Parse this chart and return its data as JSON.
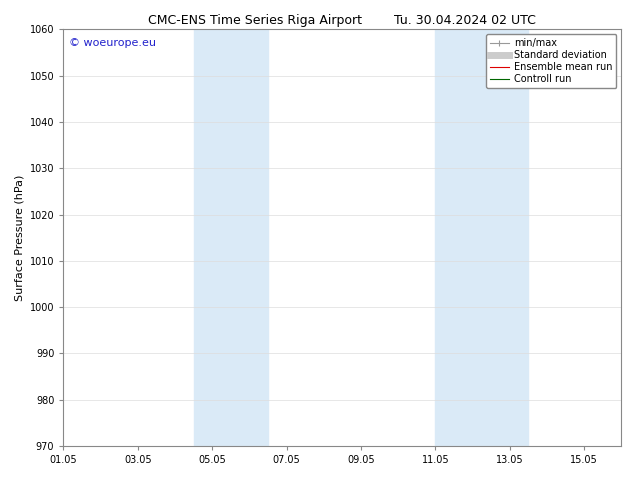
{
  "title_left": "CMC-ENS Time Series Riga Airport",
  "title_right": "Tu. 30.04.2024 02 UTC",
  "ylabel": "Surface Pressure (hPa)",
  "ylim": [
    970,
    1060
  ],
  "yticks": [
    970,
    980,
    990,
    1000,
    1010,
    1020,
    1030,
    1040,
    1050,
    1060
  ],
  "xlim": [
    0,
    15
  ],
  "xtick_labels": [
    "01.05",
    "03.05",
    "05.05",
    "07.05",
    "09.05",
    "11.05",
    "13.05",
    "15.05"
  ],
  "xtick_positions": [
    0,
    2,
    4,
    6,
    8,
    10,
    12,
    14
  ],
  "shaded_bands": [
    {
      "x_start": 3.5,
      "x_end": 5.5
    },
    {
      "x_start": 10.0,
      "x_end": 12.5
    }
  ],
  "shaded_color": "#daeaf7",
  "watermark_text": "© woeurope.eu",
  "watermark_color": "#2222cc",
  "watermark_fontsize": 8,
  "legend_labels": [
    "min/max",
    "Standard deviation",
    "Ensemble mean run",
    "Controll run"
  ],
  "legend_colors": [
    "#999999",
    "#cccccc",
    "#dd0000",
    "#006600"
  ],
  "bg_color": "#ffffff",
  "spine_color": "#888888",
  "title_fontsize": 9,
  "ylabel_fontsize": 8,
  "tick_fontsize": 7,
  "legend_fontsize": 7
}
